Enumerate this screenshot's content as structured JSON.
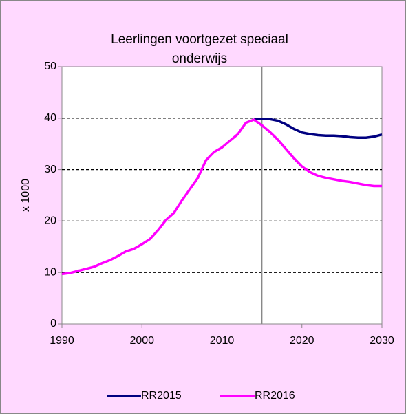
{
  "chart_data": {
    "type": "line",
    "title": "Leerlingen voortgezet speciaal onderwijs",
    "y_label": "x 1000",
    "x": [
      1990,
      1991,
      1992,
      1993,
      1994,
      1995,
      1996,
      1997,
      1998,
      1999,
      2000,
      2001,
      2002,
      2003,
      2004,
      2005,
      2006,
      2007,
      2008,
      2009,
      2010,
      2011,
      2012,
      2013,
      2014,
      2015,
      2016,
      2017,
      2018,
      2019,
      2020,
      2021,
      2022,
      2023,
      2024,
      2025,
      2026,
      2027,
      2028,
      2029,
      2030
    ],
    "series": [
      {
        "name": "RR2015",
        "color": "#000080",
        "values": [
          null,
          null,
          null,
          null,
          null,
          null,
          null,
          null,
          null,
          null,
          null,
          null,
          null,
          null,
          null,
          null,
          null,
          null,
          null,
          null,
          null,
          null,
          null,
          null,
          39.8,
          39.8,
          39.8,
          39.5,
          38.8,
          37.9,
          37.2,
          36.9,
          36.7,
          36.6,
          36.6,
          36.5,
          36.3,
          36.2,
          36.2,
          36.4,
          36.8
        ]
      },
      {
        "name": "RR2016",
        "color": "#ff00ff",
        "values": [
          9.7,
          9.9,
          10.3,
          10.7,
          11.1,
          11.8,
          12.4,
          13.2,
          14.1,
          14.6,
          15.5,
          16.5,
          18.2,
          20.2,
          21.6,
          24.0,
          26.2,
          28.4,
          31.8,
          33.4,
          34.3,
          35.6,
          36.9,
          39.1,
          39.7,
          38.6,
          37.3,
          35.8,
          34.0,
          32.2,
          30.6,
          29.5,
          28.8,
          28.4,
          28.1,
          27.8,
          27.6,
          27.3,
          27.0,
          26.8,
          26.8
        ]
      }
    ],
    "xlim": [
      1990,
      2030
    ],
    "xticks": [
      1990,
      2000,
      2010,
      2020,
      2030
    ],
    "ylim": [
      0,
      50
    ],
    "yticks": [
      0,
      10,
      20,
      30,
      40,
      50
    ],
    "grid": true,
    "vline": 2015,
    "legend": "bottom"
  }
}
